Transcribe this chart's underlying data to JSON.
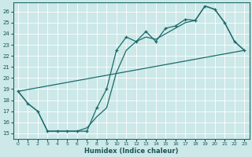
{
  "xlabel": "Humidex (Indice chaleur)",
  "background_color": "#cce8e8",
  "grid_color": "#ffffff",
  "line_color": "#1a6b6b",
  "xlim": [
    -0.5,
    23.5
  ],
  "ylim": [
    14.5,
    26.8
  ],
  "xticks": [
    0,
    1,
    2,
    3,
    4,
    5,
    6,
    7,
    8,
    9,
    10,
    11,
    12,
    13,
    14,
    15,
    16,
    17,
    18,
    19,
    20,
    21,
    22,
    23
  ],
  "yticks": [
    15,
    16,
    17,
    18,
    19,
    20,
    21,
    22,
    23,
    24,
    25,
    26
  ],
  "line1_x": [
    0,
    1,
    2,
    3,
    4,
    5,
    6,
    7,
    8,
    9,
    10,
    11,
    12,
    13,
    14,
    15,
    16,
    17,
    18,
    19,
    20,
    21,
    22,
    23
  ],
  "line1_y": [
    18.8,
    17.7,
    17.0,
    15.2,
    15.2,
    15.2,
    15.2,
    15.2,
    17.3,
    19.0,
    22.5,
    23.7,
    23.3,
    24.2,
    23.3,
    24.5,
    24.7,
    25.3,
    25.2,
    26.5,
    26.2,
    25.0,
    23.3,
    22.5
  ],
  "line2_x": [
    0,
    1,
    2,
    3,
    4,
    5,
    6,
    7,
    8,
    9,
    10,
    11,
    12,
    13,
    14,
    15,
    16,
    17,
    18,
    19,
    20,
    21,
    22,
    23
  ],
  "line2_y": [
    18.8,
    17.7,
    17.0,
    15.2,
    15.2,
    15.2,
    15.2,
    15.5,
    16.5,
    17.3,
    20.5,
    22.5,
    23.3,
    23.7,
    23.5,
    24.0,
    24.5,
    25.0,
    25.2,
    26.5,
    26.2,
    25.0,
    23.3,
    22.5
  ],
  "line3_x": [
    0,
    23
  ],
  "line3_y": [
    18.8,
    22.5
  ]
}
